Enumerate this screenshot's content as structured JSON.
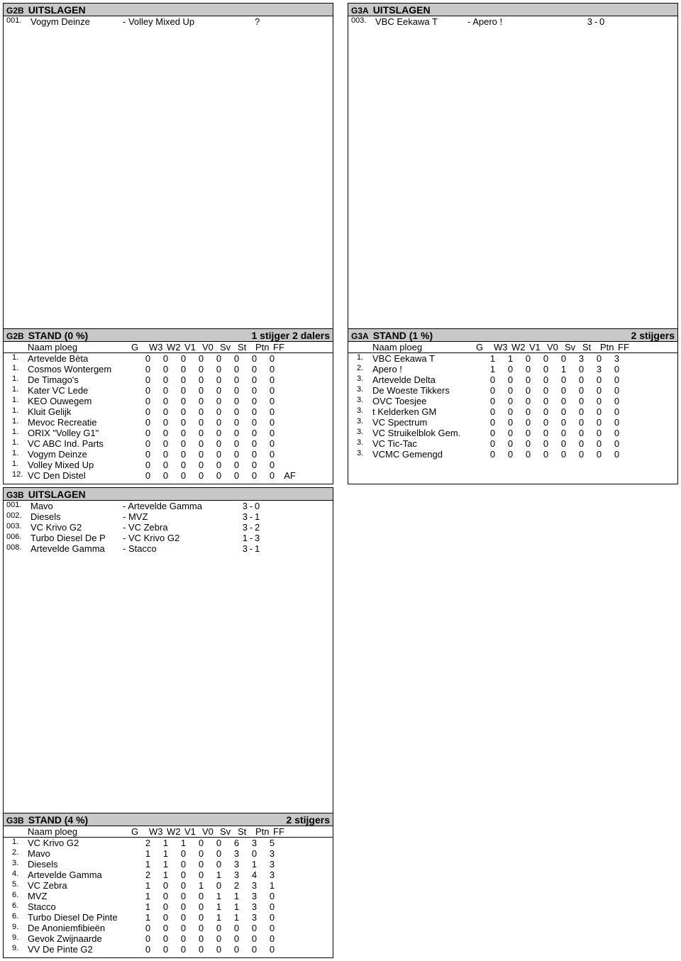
{
  "labels": {
    "uitslagen": "UITSLAGEN",
    "naam_ploeg": "Naam ploeg",
    "cols": [
      "G",
      "W3",
      "W2",
      "V1",
      "V0",
      "Sv",
      "St",
      "Ptn",
      "FF"
    ]
  },
  "g2b_u": {
    "league": "G2B",
    "matches": [
      {
        "n": "001.",
        "home": "Vogym Deinze",
        "away": "- Volley Mixed Up",
        "s1": "",
        "d": "",
        "s2": "?"
      }
    ]
  },
  "g3a_u": {
    "league": "G3A",
    "matches": [
      {
        "n": "003.",
        "home": "VBC Eekawa T",
        "away": "- Apero !",
        "s1": "3",
        "d": "-",
        "s2": "0"
      }
    ]
  },
  "g2b_s": {
    "league": "G2B",
    "title": "STAND (0 %)",
    "right": "1 stijger 2 dalers",
    "rows": [
      {
        "p": "1.",
        "n": "Artevelde Bèta",
        "v": [
          "0",
          "0",
          "0",
          "0",
          "0",
          "0",
          "0",
          "0",
          ""
        ]
      },
      {
        "p": "1.",
        "n": "Cosmos Wontergem",
        "v": [
          "0",
          "0",
          "0",
          "0",
          "0",
          "0",
          "0",
          "0",
          ""
        ]
      },
      {
        "p": "1.",
        "n": "De Timago's",
        "v": [
          "0",
          "0",
          "0",
          "0",
          "0",
          "0",
          "0",
          "0",
          ""
        ]
      },
      {
        "p": "1.",
        "n": "Kater VC Lede",
        "v": [
          "0",
          "0",
          "0",
          "0",
          "0",
          "0",
          "0",
          "0",
          ""
        ]
      },
      {
        "p": "1.",
        "n": "KEO Ouwegem",
        "v": [
          "0",
          "0",
          "0",
          "0",
          "0",
          "0",
          "0",
          "0",
          ""
        ]
      },
      {
        "p": "1.",
        "n": "Kluit Gelijk",
        "v": [
          "0",
          "0",
          "0",
          "0",
          "0",
          "0",
          "0",
          "0",
          ""
        ]
      },
      {
        "p": "1.",
        "n": "Mevoc Recreatie",
        "v": [
          "0",
          "0",
          "0",
          "0",
          "0",
          "0",
          "0",
          "0",
          ""
        ]
      },
      {
        "p": "1.",
        "n": "ORIX \"Volley G1\"",
        "v": [
          "0",
          "0",
          "0",
          "0",
          "0",
          "0",
          "0",
          "0",
          ""
        ]
      },
      {
        "p": "1.",
        "n": "VC ABC Ind. Parts",
        "v": [
          "0",
          "0",
          "0",
          "0",
          "0",
          "0",
          "0",
          "0",
          ""
        ]
      },
      {
        "p": "1.",
        "n": "Vogym Deinze",
        "v": [
          "0",
          "0",
          "0",
          "0",
          "0",
          "0",
          "0",
          "0",
          ""
        ]
      },
      {
        "p": "1.",
        "n": "Volley Mixed Up",
        "v": [
          "0",
          "0",
          "0",
          "0",
          "0",
          "0",
          "0",
          "0",
          ""
        ]
      },
      {
        "p": "12.",
        "n": "VC Den Distel",
        "v": [
          "0",
          "0",
          "0",
          "0",
          "0",
          "0",
          "0",
          "0",
          "AF"
        ]
      }
    ]
  },
  "g3a_s": {
    "league": "G3A",
    "title": "STAND (1 %)",
    "right": "2 stijgers",
    "rows": [
      {
        "p": "1.",
        "n": "VBC Eekawa T",
        "v": [
          "1",
          "1",
          "0",
          "0",
          "0",
          "3",
          "0",
          "3",
          ""
        ]
      },
      {
        "p": "2.",
        "n": "Apero !",
        "v": [
          "1",
          "0",
          "0",
          "0",
          "1",
          "0",
          "3",
          "0",
          ""
        ]
      },
      {
        "p": "3.",
        "n": "Artevelde Delta",
        "v": [
          "0",
          "0",
          "0",
          "0",
          "0",
          "0",
          "0",
          "0",
          ""
        ]
      },
      {
        "p": "3.",
        "n": "De Woeste Tikkers",
        "v": [
          "0",
          "0",
          "0",
          "0",
          "0",
          "0",
          "0",
          "0",
          ""
        ]
      },
      {
        "p": "3.",
        "n": "OVC Toesjee",
        "v": [
          "0",
          "0",
          "0",
          "0",
          "0",
          "0",
          "0",
          "0",
          ""
        ]
      },
      {
        "p": "3.",
        "n": "t Kelderken GM",
        "v": [
          "0",
          "0",
          "0",
          "0",
          "0",
          "0",
          "0",
          "0",
          ""
        ]
      },
      {
        "p": "3.",
        "n": "VC Spectrum",
        "v": [
          "0",
          "0",
          "0",
          "0",
          "0",
          "0",
          "0",
          "0",
          ""
        ]
      },
      {
        "p": "3.",
        "n": "VC Struikelblok Gem.",
        "v": [
          "0",
          "0",
          "0",
          "0",
          "0",
          "0",
          "0",
          "0",
          ""
        ]
      },
      {
        "p": "3.",
        "n": "VC Tic-Tac",
        "v": [
          "0",
          "0",
          "0",
          "0",
          "0",
          "0",
          "0",
          "0",
          ""
        ]
      },
      {
        "p": "3.",
        "n": "VCMC Gemengd",
        "v": [
          "0",
          "0",
          "0",
          "0",
          "0",
          "0",
          "0",
          "0",
          ""
        ]
      }
    ]
  },
  "g3b_u": {
    "league": "G3B",
    "matches": [
      {
        "n": "001.",
        "home": "Mavo",
        "away": "- Artevelde Gamma",
        "s1": "3",
        "d": "-",
        "s2": "0"
      },
      {
        "n": "002.",
        "home": "Diesels",
        "away": "- MVZ",
        "s1": "3",
        "d": "-",
        "s2": "1"
      },
      {
        "n": "003.",
        "home": "VC Krivo G2",
        "away": "- VC Zebra",
        "s1": "3",
        "d": "-",
        "s2": "2"
      },
      {
        "n": "006.",
        "home": "Turbo Diesel De P",
        "away": "- VC Krivo G2",
        "s1": "1",
        "d": "-",
        "s2": "3"
      },
      {
        "n": "008.",
        "home": "Artevelde Gamma",
        "away": "- Stacco",
        "s1": "3",
        "d": "-",
        "s2": "1"
      }
    ]
  },
  "g3b_s": {
    "league": "G3B",
    "title": "STAND (4 %)",
    "right": "2 stijgers",
    "rows": [
      {
        "p": "1.",
        "n": "VC Krivo G2",
        "v": [
          "2",
          "1",
          "1",
          "0",
          "0",
          "6",
          "3",
          "5",
          ""
        ]
      },
      {
        "p": "2.",
        "n": "Mavo",
        "v": [
          "1",
          "1",
          "0",
          "0",
          "0",
          "3",
          "0",
          "3",
          ""
        ]
      },
      {
        "p": "3.",
        "n": "Diesels",
        "v": [
          "1",
          "1",
          "0",
          "0",
          "0",
          "3",
          "1",
          "3",
          ""
        ]
      },
      {
        "p": "4.",
        "n": "Artevelde Gamma",
        "v": [
          "2",
          "1",
          "0",
          "0",
          "1",
          "3",
          "4",
          "3",
          ""
        ]
      },
      {
        "p": "5.",
        "n": "VC Zebra",
        "v": [
          "1",
          "0",
          "0",
          "1",
          "0",
          "2",
          "3",
          "1",
          ""
        ]
      },
      {
        "p": "6.",
        "n": "MVZ",
        "v": [
          "1",
          "0",
          "0",
          "0",
          "1",
          "1",
          "3",
          "0",
          ""
        ]
      },
      {
        "p": "6.",
        "n": "Stacco",
        "v": [
          "1",
          "0",
          "0",
          "0",
          "1",
          "1",
          "3",
          "0",
          ""
        ]
      },
      {
        "p": "6.",
        "n": "Turbo Diesel De Pinte",
        "v": [
          "1",
          "0",
          "0",
          "0",
          "1",
          "1",
          "3",
          "0",
          ""
        ]
      },
      {
        "p": "9.",
        "n": "De Anoniemfibieën",
        "v": [
          "0",
          "0",
          "0",
          "0",
          "0",
          "0",
          "0",
          "0",
          ""
        ]
      },
      {
        "p": "9.",
        "n": "Gevok Zwijnaarde",
        "v": [
          "0",
          "0",
          "0",
          "0",
          "0",
          "0",
          "0",
          "0",
          ""
        ]
      },
      {
        "p": "9.",
        "n": "VV De Pinte G2",
        "v": [
          "0",
          "0",
          "0",
          "0",
          "0",
          "0",
          "0",
          "0",
          ""
        ]
      }
    ]
  }
}
